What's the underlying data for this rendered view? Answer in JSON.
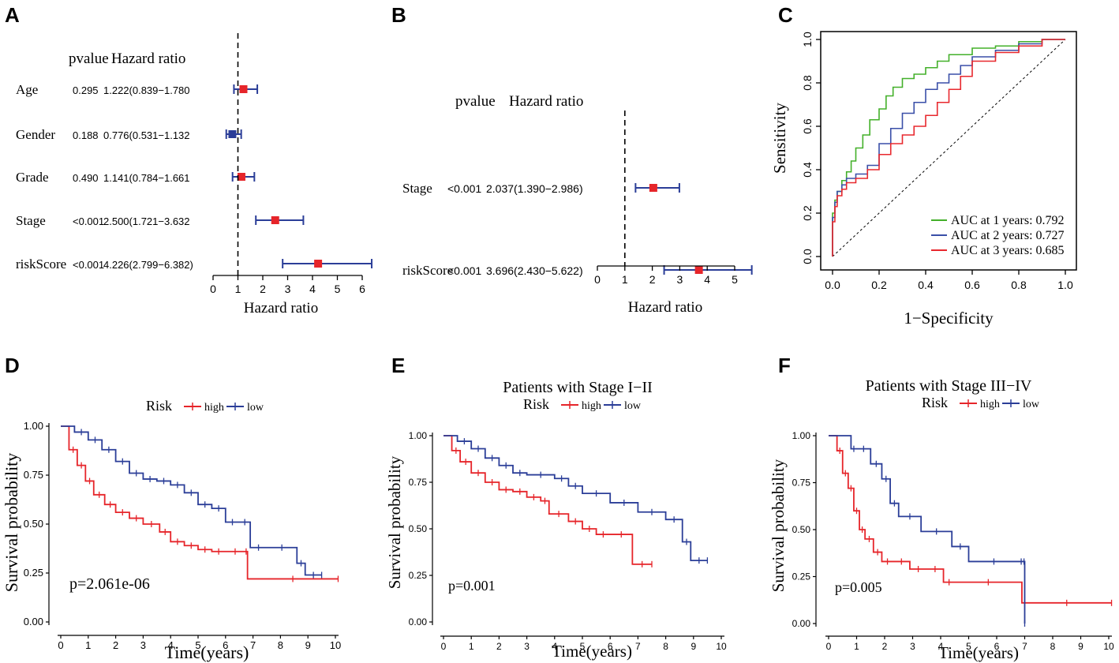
{
  "colors": {
    "red": "#e6252a",
    "blue": "#2b3e98",
    "green": "#43b02a",
    "roc_red": "#e8282e",
    "roc_blue": "#3a4fa8",
    "forest_line": "#2b3e98",
    "forest_box": "#e6252a"
  },
  "panel_labels": {
    "a": "A",
    "b": "B",
    "c": "C",
    "d": "D",
    "e": "E",
    "f": "F"
  },
  "chart_data": [
    {
      "id": "A",
      "type": "forest",
      "col_pvalue": "pvalue",
      "col_hr": "Hazard ratio",
      "xlabel": "Hazard ratio",
      "xlim": [
        0,
        6
      ],
      "xticks": [
        "0",
        "1",
        "2",
        "3",
        "4",
        "5",
        "6"
      ],
      "reference_line": 1,
      "rows": [
        {
          "label": "Age",
          "pvalue": "0.295",
          "hr_text": "1.222(0.839−1.780",
          "hr": 1.222,
          "lo": 0.839,
          "hi": 1.78
        },
        {
          "label": "Gender",
          "pvalue": "0.188",
          "hr_text": "0.776(0.531−1.132",
          "hr": 0.776,
          "lo": 0.531,
          "hi": 1.132
        },
        {
          "label": "Grade",
          "pvalue": "0.490",
          "hr_text": "1.141(0.784−1.661",
          "hr": 1.141,
          "lo": 0.784,
          "hi": 1.661
        },
        {
          "label": "Stage",
          "pvalue": "<0.001",
          "hr_text": "2.500(1.721−3.632",
          "hr": 2.5,
          "lo": 1.721,
          "hi": 3.632
        },
        {
          "label": "riskScore",
          "pvalue": "<0.001",
          "hr_text": "4.226(2.799−6.382)",
          "hr": 4.226,
          "lo": 2.799,
          "hi": 6.382
        }
      ]
    },
    {
      "id": "B",
      "type": "forest",
      "col_pvalue": "pvalue",
      "col_hr": "Hazard ratio",
      "xlabel": "Hazard ratio",
      "xlim": [
        0,
        5
      ],
      "xticks": [
        "0",
        "1",
        "2",
        "3",
        "4",
        "5"
      ],
      "reference_line": 1,
      "rows": [
        {
          "label": "Stage",
          "pvalue": "<0.001",
          "hr_text": "2.037(1.390−2.986)",
          "hr": 2.037,
          "lo": 1.39,
          "hi": 2.986
        },
        {
          "label": "riskScore",
          "pvalue": "<0.001",
          "hr_text": "3.696(2.430−5.622)",
          "hr": 3.696,
          "lo": 2.43,
          "hi": 5.622
        }
      ]
    },
    {
      "id": "C",
      "type": "line",
      "subtype": "roc",
      "xlabel": "1−Specificity",
      "ylabel": "Sensitivity",
      "xlim": [
        0,
        1
      ],
      "ylim": [
        0,
        1
      ],
      "xticks": [
        "0.0",
        "0.2",
        "0.4",
        "0.6",
        "0.8",
        "1.0"
      ],
      "yticks": [
        "0.0",
        "0.2",
        "0.4",
        "0.6",
        "0.8",
        "1.0"
      ],
      "legend_position": "bottom-right",
      "series": [
        {
          "name": "AUC at 1 years: 0.792",
          "color": "#43b02a",
          "x": [
            0,
            0.01,
            0.02,
            0.04,
            0.06,
            0.08,
            0.1,
            0.13,
            0.16,
            0.2,
            0.23,
            0.26,
            0.3,
            0.35,
            0.4,
            0.45,
            0.5,
            0.6,
            0.7,
            0.8,
            0.9,
            1.0
          ],
          "y": [
            0,
            0.2,
            0.26,
            0.3,
            0.35,
            0.39,
            0.44,
            0.5,
            0.56,
            0.63,
            0.68,
            0.74,
            0.78,
            0.82,
            0.84,
            0.87,
            0.9,
            0.93,
            0.96,
            0.97,
            0.99,
            1.0
          ]
        },
        {
          "name": "AUC at 2 years: 0.727",
          "color": "#3a4fa8",
          "x": [
            0,
            0.01,
            0.02,
            0.04,
            0.06,
            0.1,
            0.15,
            0.2,
            0.25,
            0.3,
            0.35,
            0.4,
            0.45,
            0.5,
            0.55,
            0.6,
            0.7,
            0.8,
            0.9,
            1.0
          ],
          "y": [
            0,
            0.18,
            0.25,
            0.3,
            0.33,
            0.36,
            0.38,
            0.42,
            0.52,
            0.59,
            0.66,
            0.71,
            0.77,
            0.8,
            0.84,
            0.88,
            0.92,
            0.95,
            0.98,
            1.0
          ]
        },
        {
          "name": "AUC at 3 years: 0.685",
          "color": "#e8282e",
          "x": [
            0,
            0.01,
            0.02,
            0.04,
            0.06,
            0.1,
            0.15,
            0.2,
            0.25,
            0.3,
            0.35,
            0.4,
            0.45,
            0.5,
            0.55,
            0.6,
            0.7,
            0.8,
            0.9,
            1.0
          ],
          "y": [
            0,
            0.16,
            0.23,
            0.28,
            0.31,
            0.34,
            0.36,
            0.4,
            0.47,
            0.52,
            0.56,
            0.6,
            0.65,
            0.71,
            0.77,
            0.83,
            0.9,
            0.94,
            0.97,
            1.0
          ]
        }
      ]
    },
    {
      "id": "D",
      "type": "line",
      "subtype": "kaplan-meier",
      "title": "",
      "legend_title": "Risk",
      "xlabel": "Time(years)",
      "ylabel": "Survival probability",
      "pvalue_text": "p=2.061e-06",
      "xlim": [
        0,
        10
      ],
      "ylim": [
        0,
        1
      ],
      "xticks": [
        "0",
        "1",
        "2",
        "3",
        "4",
        "5",
        "6",
        "7",
        "8",
        "9",
        "10"
      ],
      "yticks": [
        "0.00",
        "0.25",
        "0.50",
        "0.75",
        "1.00"
      ],
      "series": [
        {
          "name": "high",
          "color": "#e6252a",
          "x": [
            0,
            0.3,
            0.6,
            0.9,
            1.2,
            1.6,
            2.0,
            2.5,
            3.0,
            3.6,
            4.0,
            4.5,
            5.0,
            5.5,
            6.0,
            6.7,
            6.8,
            10.1
          ],
          "y": [
            1.0,
            0.88,
            0.8,
            0.72,
            0.65,
            0.6,
            0.56,
            0.53,
            0.5,
            0.46,
            0.41,
            0.39,
            0.37,
            0.36,
            0.36,
            0.36,
            0.22,
            0.22
          ]
        },
        {
          "name": "low",
          "color": "#2b3e98",
          "x": [
            0,
            0.5,
            1.0,
            1.5,
            2.0,
            2.5,
            3.0,
            3.5,
            4.0,
            4.5,
            5.0,
            5.5,
            6.0,
            6.5,
            6.9,
            7.5,
            8.6,
            8.9,
            9.5
          ],
          "y": [
            1.0,
            0.97,
            0.93,
            0.88,
            0.82,
            0.76,
            0.73,
            0.72,
            0.7,
            0.66,
            0.6,
            0.58,
            0.51,
            0.51,
            0.38,
            0.38,
            0.3,
            0.24,
            0.24
          ]
        }
      ]
    },
    {
      "id": "E",
      "type": "line",
      "subtype": "kaplan-meier",
      "title": "Patients with Stage I−II",
      "legend_title": "Risk",
      "xlabel": "Time(years)",
      "ylabel": "Survival probability",
      "pvalue_text": "p=0.001",
      "xlim": [
        0,
        10
      ],
      "ylim": [
        0,
        1
      ],
      "xticks": [
        "0",
        "1",
        "2",
        "3",
        "4",
        "5",
        "6",
        "7",
        "8",
        "9",
        "10"
      ],
      "yticks": [
        "0.00",
        "0.25",
        "0.50",
        "0.75",
        "1.00"
      ],
      "series": [
        {
          "name": "high",
          "color": "#e6252a",
          "x": [
            0,
            0.3,
            0.6,
            1.0,
            1.5,
            2.0,
            2.5,
            3.0,
            3.5,
            3.8,
            4.5,
            5.0,
            5.5,
            6.0,
            6.8,
            7.5
          ],
          "y": [
            1.0,
            0.92,
            0.86,
            0.8,
            0.75,
            0.71,
            0.7,
            0.67,
            0.65,
            0.58,
            0.54,
            0.5,
            0.47,
            0.47,
            0.31,
            0.31
          ]
        },
        {
          "name": "low",
          "color": "#2b3e98",
          "x": [
            0,
            0.5,
            1.0,
            1.5,
            2.0,
            2.5,
            3.0,
            4.0,
            4.5,
            5.0,
            6.0,
            7.0,
            8.0,
            8.6,
            8.9,
            9.5
          ],
          "y": [
            1.0,
            0.97,
            0.93,
            0.88,
            0.84,
            0.8,
            0.79,
            0.77,
            0.73,
            0.69,
            0.64,
            0.59,
            0.55,
            0.43,
            0.33,
            0.33
          ]
        }
      ]
    },
    {
      "id": "F",
      "type": "line",
      "subtype": "kaplan-meier",
      "title": "Patients with Stage III−IV",
      "legend_title": "Risk",
      "xlabel": "Time(years)",
      "ylabel": "Survival probability",
      "pvalue_text": "p=0.005",
      "xlim": [
        0,
        10
      ],
      "ylim": [
        0,
        1
      ],
      "xticks": [
        "0",
        "1",
        "2",
        "3",
        "4",
        "5",
        "6",
        "7",
        "8",
        "9",
        "10"
      ],
      "yticks": [
        "0.00",
        "0.25",
        "0.50",
        "0.75",
        "1.00"
      ],
      "series": [
        {
          "name": "high",
          "color": "#e6252a",
          "x": [
            0,
            0.3,
            0.5,
            0.7,
            0.9,
            1.1,
            1.3,
            1.6,
            1.9,
            2.3,
            2.9,
            3.5,
            4.1,
            4.5,
            6.9,
            10.1
          ],
          "y": [
            1.0,
            0.92,
            0.8,
            0.72,
            0.6,
            0.5,
            0.45,
            0.38,
            0.33,
            0.33,
            0.29,
            0.29,
            0.22,
            0.22,
            0.11,
            0.11
          ]
        },
        {
          "name": "low",
          "color": "#2b3e98",
          "x": [
            0,
            0.8,
            1.0,
            1.5,
            1.9,
            2.2,
            2.5,
            3.3,
            4.4,
            5.0,
            6.8,
            6.95,
            7.0
          ],
          "y": [
            1.0,
            0.93,
            0.93,
            0.85,
            0.77,
            0.64,
            0.57,
            0.49,
            0.41,
            0.33,
            0.33,
            0.33,
            0.0
          ]
        }
      ]
    }
  ]
}
